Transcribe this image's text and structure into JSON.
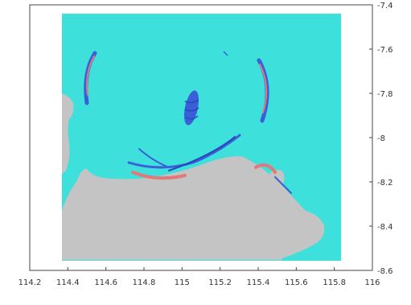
{
  "map": {
    "x_ticks": [
      "114.2",
      "114.4",
      "114.6",
      "114.8",
      "115",
      "115.2",
      "115.4",
      "115.6",
      "115.8",
      "116"
    ],
    "y_ticks": [
      "-7.4",
      "-7.6",
      "-7.8",
      "-8",
      "-8.2",
      "-8.4",
      "-8.6"
    ],
    "x_range": [
      114.2,
      116.0
    ],
    "y_range": [
      -8.6,
      -7.4
    ],
    "data_extent": {
      "lon": [
        114.38,
        115.82
      ],
      "lat": [
        -8.58,
        -7.43
      ]
    },
    "colors": {
      "ocean": "#3ee0dc",
      "land": "#c4c4c4",
      "feature_blue": "#3a5fd8",
      "feature_red": "#e07a7a",
      "frame": "#444444"
    }
  }
}
